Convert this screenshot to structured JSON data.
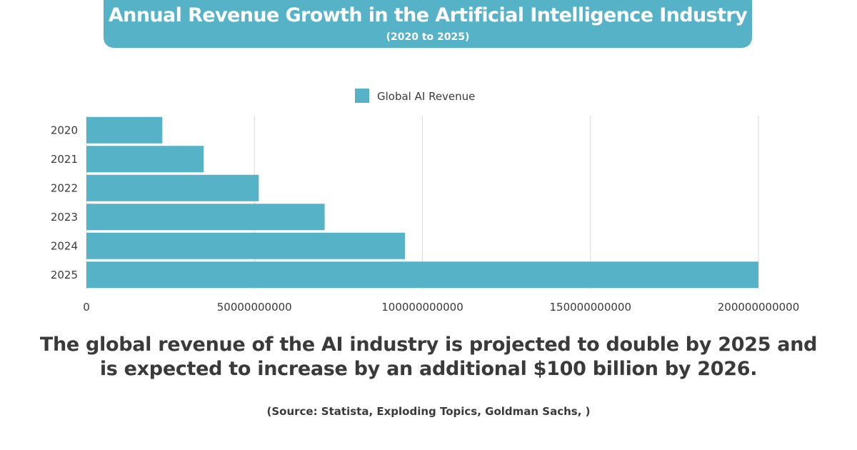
{
  "header": {
    "title": "Annual Revenue Growth in the Artificial Intelligence Industry",
    "subtitle": "(2020 to 2025)"
  },
  "chart_data": {
    "type": "bar",
    "orientation": "horizontal",
    "title": "Annual Revenue Growth in the Artificial Intelligence Industry",
    "subtitle": "(2020 to 2025)",
    "categories": [
      "2020",
      "2021",
      "2022",
      "2023",
      "2024",
      "2025"
    ],
    "series": [
      {
        "name": "Global AI Revenue",
        "values": [
          22600000000,
          34900000000,
          51300000000,
          70900000000,
          94800000000,
          200000000000
        ]
      }
    ],
    "xlim": [
      0,
      200000000000
    ],
    "xticks": [
      0,
      50000000000,
      100000000000,
      150000000000,
      200000000000
    ],
    "xtick_labels": [
      "0",
      "50000000000",
      "100000000000",
      "150000000000",
      "200000000000"
    ],
    "xlabel": "",
    "ylabel": "",
    "grid": "vertical",
    "legend_position": "top-center",
    "bar_color": "#55b2c7",
    "grid_color": "#d9d9d9"
  },
  "footer": {
    "headline_line1": "The global revenue of the AI industry is projected to double by 2025 and",
    "headline_line2": "is expected to increase by an additional $100 billion by 2026.",
    "source": "(Source: Statista, Exploding Topics, Goldman Sachs, )"
  }
}
